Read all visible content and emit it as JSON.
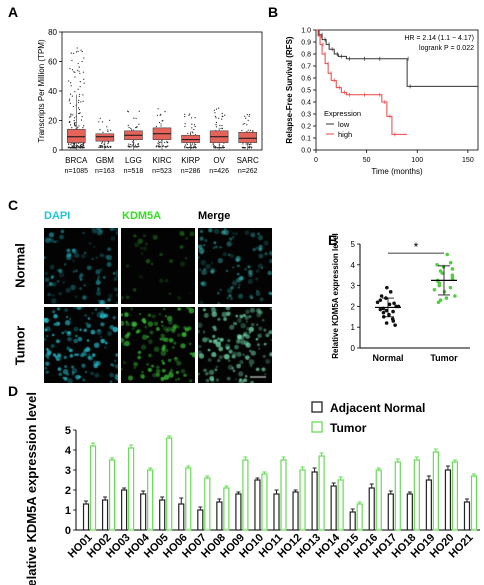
{
  "panels": {
    "A": {
      "label": "A"
    },
    "B": {
      "label": "B"
    },
    "C": {
      "label": "C"
    },
    "D": {
      "label": "D"
    },
    "E": {
      "label": "E"
    }
  },
  "chart_data": [
    {
      "id": "A",
      "type": "box",
      "ylabel": "Transcripts Per Million (TPM)",
      "yticks": [
        0,
        20,
        40,
        60,
        80
      ],
      "ylim": [
        0,
        80
      ],
      "categories": [
        "BRCA",
        "GBM",
        "LGG",
        "KIRC",
        "KIRP",
        "OV",
        "SARC"
      ],
      "counts": [
        "n=1085",
        "n=163",
        "n=518",
        "n=523",
        "n=286",
        "n=426",
        "n=262"
      ],
      "boxes": [
        {
          "q1": 5,
          "median": 9,
          "q3": 14,
          "max": 75
        },
        {
          "q1": 6,
          "median": 9,
          "q3": 11,
          "max": 22
        },
        {
          "q1": 7,
          "median": 10,
          "q3": 13,
          "max": 28
        },
        {
          "q1": 7,
          "median": 11,
          "q3": 15,
          "max": 30
        },
        {
          "q1": 5,
          "median": 7,
          "q3": 10,
          "max": 25
        },
        {
          "q1": 5,
          "median": 9,
          "q3": 13,
          "max": 30
        },
        {
          "q1": 5,
          "median": 8,
          "q3": 12,
          "max": 25
        }
      ],
      "box_color": "#e4645c"
    },
    {
      "id": "B",
      "type": "line",
      "ylabel": "Relapse-Free Survival (RFS)",
      "xlabel": "Time (months)",
      "xticks": [
        0,
        50,
        100,
        150
      ],
      "yticks": [
        0.0,
        0.1,
        0.2,
        0.3,
        0.4,
        0.5,
        0.6,
        0.7,
        0.8,
        0.9,
        1.0
      ],
      "xlim": [
        0,
        160
      ],
      "ylim": [
        0,
        1.0
      ],
      "annotation_hr": "HR = 2.14 (1.1 − 4.17)",
      "annotation_p": "logrank P = 0.022",
      "legend_title": "Expression",
      "series": [
        {
          "name": "low",
          "color": "#333333",
          "x": [
            0,
            3,
            6,
            10,
            13,
            18,
            22,
            30,
            45,
            60,
            88,
            90,
            160
          ],
          "y": [
            1.0,
            0.96,
            0.92,
            0.88,
            0.84,
            0.8,
            0.78,
            0.76,
            0.76,
            0.76,
            0.76,
            0.53,
            0.53
          ]
        },
        {
          "name": "high",
          "color": "#ee4444",
          "x": [
            0,
            2,
            4,
            6,
            9,
            12,
            15,
            20,
            25,
            30,
            45,
            60,
            65,
            70,
            75,
            90
          ],
          "y": [
            1.0,
            0.95,
            0.88,
            0.8,
            0.72,
            0.64,
            0.58,
            0.52,
            0.48,
            0.46,
            0.46,
            0.46,
            0.4,
            0.28,
            0.13,
            0.13
          ]
        }
      ]
    },
    {
      "id": "E",
      "type": "scatter",
      "ylabel": "Relative KDM5A expression level",
      "categories": [
        "Normal",
        "Tumor"
      ],
      "yticks": [
        0,
        1,
        2,
        3,
        4,
        5
      ],
      "ylim": [
        0,
        5
      ],
      "significance": "*",
      "series": [
        {
          "name": "Normal",
          "color": "#111111",
          "mean": 1.95,
          "sd": 0.45,
          "values": [
            2.9,
            2.7,
            2.5,
            2.4,
            2.3,
            2.2,
            2.15,
            2.1,
            2.0,
            2.0,
            1.9,
            1.85,
            1.8,
            1.75,
            1.7,
            1.6,
            1.5,
            1.4,
            1.3,
            1.2,
            1.1
          ]
        },
        {
          "name": "Tumor",
          "color": "#55cc44",
          "mean": 3.25,
          "sd": 0.7,
          "values": [
            4.5,
            4.1,
            4.0,
            3.9,
            3.8,
            3.7,
            3.6,
            3.5,
            3.4,
            3.3,
            3.25,
            3.2,
            3.1,
            3.0,
            2.9,
            2.8,
            2.7,
            2.5,
            2.4,
            2.3,
            2.2
          ]
        }
      ]
    },
    {
      "id": "D",
      "type": "bar",
      "ylabel": "Relative KDM5A expression level",
      "yticks": [
        0,
        1,
        2,
        3,
        4,
        5
      ],
      "ylim": [
        0,
        5
      ],
      "categories": [
        "HO01",
        "HO02",
        "HO03",
        "HO04",
        "HO05",
        "HO06",
        "HO07",
        "HO08",
        "HO09",
        "HO10",
        "HO11",
        "HO12",
        "HO13",
        "HO14",
        "HO15",
        "HO16",
        "HO17",
        "HO18",
        "HO19",
        "HO20",
        "HO21"
      ],
      "series": [
        {
          "name": "Adjacent Normal",
          "color": "#222222",
          "values": [
            1.3,
            1.5,
            2.0,
            1.8,
            1.5,
            1.3,
            1.0,
            1.4,
            1.8,
            2.5,
            1.8,
            1.9,
            2.9,
            2.2,
            0.9,
            2.1,
            1.8,
            1.8,
            2.5,
            3.0,
            1.4
          ],
          "errors": [
            0.15,
            0.15,
            0.1,
            0.15,
            0.15,
            0.3,
            0.15,
            0.15,
            0.1,
            0.1,
            0.2,
            0.1,
            0.2,
            0.15,
            0.15,
            0.2,
            0.15,
            0.1,
            0.2,
            0.2,
            0.15
          ]
        },
        {
          "name": "Tumor",
          "color": "#66dd55",
          "values": [
            4.2,
            3.5,
            4.1,
            3.0,
            4.6,
            3.1,
            2.6,
            2.1,
            3.5,
            2.8,
            3.5,
            3.0,
            3.7,
            2.5,
            1.3,
            3.0,
            3.4,
            3.5,
            3.9,
            3.4,
            2.7
          ],
          "errors": [
            0.15,
            0.1,
            0.15,
            0.1,
            0.1,
            0.1,
            0.1,
            0.1,
            0.15,
            0.1,
            0.15,
            0.15,
            0.15,
            0.15,
            0.1,
            0.1,
            0.15,
            0.15,
            0.15,
            0.1,
            0.1
          ]
        }
      ]
    }
  ],
  "microscopy": {
    "column_labels": [
      "DAPI",
      "KDM5A",
      "Merge"
    ],
    "column_colors": [
      "#22c4d8",
      "#33dd22",
      "#000000"
    ],
    "row_labels": [
      "Normal",
      "Tumor"
    ]
  }
}
